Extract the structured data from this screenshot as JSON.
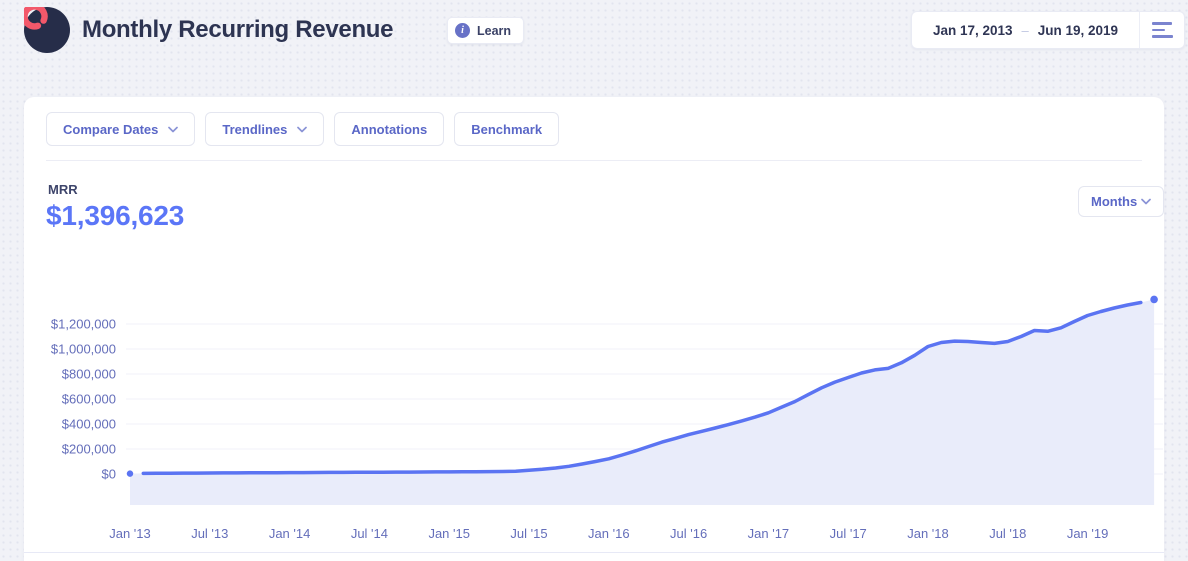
{
  "header": {
    "title": "Monthly Recurring Revenue",
    "learn": {
      "label": "Learn"
    },
    "date_range": {
      "start": "Jan 17, 2013",
      "separator": "–",
      "end": "Jun 19, 2019"
    }
  },
  "toolbar": {
    "buttons": [
      {
        "label": "Compare Dates",
        "has_dropdown": true
      },
      {
        "label": "Trendlines",
        "has_dropdown": true
      },
      {
        "label": "Annotations",
        "has_dropdown": false
      },
      {
        "label": "Benchmark",
        "has_dropdown": false
      }
    ]
  },
  "metric": {
    "label": "MRR",
    "value": "$1,396,623"
  },
  "interval_select": {
    "value": "Months"
  },
  "colors": {
    "accent_blue": "#5b74f2",
    "metric_value_blue": "#5b76f7",
    "area_fill": "#e9ecfa",
    "axis_label": "#646eba",
    "gridline": "#f1f2f9",
    "logo_coral": "#f2586a",
    "logo_navy": "#262d49",
    "title_navy": "#2d3452",
    "button_indigo": "#5a67c7"
  },
  "chart_data": {
    "type": "area",
    "title": "MRR",
    "unit": "USD",
    "x_start": "Jan 2013",
    "x_interval": "month",
    "x_tick_labels": [
      "Jan '13",
      "Jul '13",
      "Jan '14",
      "Jul '14",
      "Jan '15",
      "Jul '15",
      "Jan '16",
      "Jul '16",
      "Jan '17",
      "Jul '17",
      "Jan '18",
      "Jul '18",
      "Jan '19"
    ],
    "x_ticks_every_n_months": 6,
    "y_ticks": [
      {
        "label": "$1,200,000",
        "value": 1200000
      },
      {
        "label": "$1,000,000",
        "value": 1000000
      },
      {
        "label": "$800,000",
        "value": 800000
      },
      {
        "label": "$600,000",
        "value": 600000
      },
      {
        "label": "$400,000",
        "value": 400000
      },
      {
        "label": "$200,000",
        "value": 200000
      },
      {
        "label": "$0",
        "value": 0
      }
    ],
    "ylim": [
      0,
      1400000
    ],
    "grid": "horizontal",
    "legend": "none",
    "markers": "dot on first and last point; line detached from end dots",
    "series": [
      {
        "name": "MRR",
        "values": [
          3000,
          4500,
          5500,
          6500,
          7000,
          7500,
          8000,
          8500,
          9000,
          9500,
          10000,
          10500,
          11000,
          11500,
          12000,
          12500,
          13000,
          13500,
          14000,
          14500,
          15000,
          15500,
          16000,
          16500,
          17000,
          17500,
          18000,
          19000,
          20000,
          22000,
          30000,
          38000,
          48000,
          62000,
          80000,
          100000,
          122000,
          152000,
          185000,
          220000,
          255000,
          285000,
          315000,
          342000,
          368000,
          395000,
          425000,
          455000,
          490000,
          535000,
          580000,
          635000,
          690000,
          735000,
          772000,
          808000,
          833000,
          845000,
          890000,
          950000,
          1020000,
          1052000,
          1063000,
          1060000,
          1052000,
          1045000,
          1060000,
          1100000,
          1148000,
          1142000,
          1170000,
          1220000,
          1268000,
          1300000,
          1328000,
          1352000,
          1372000,
          1396623
        ]
      }
    ],
    "last_value": 1396623
  }
}
